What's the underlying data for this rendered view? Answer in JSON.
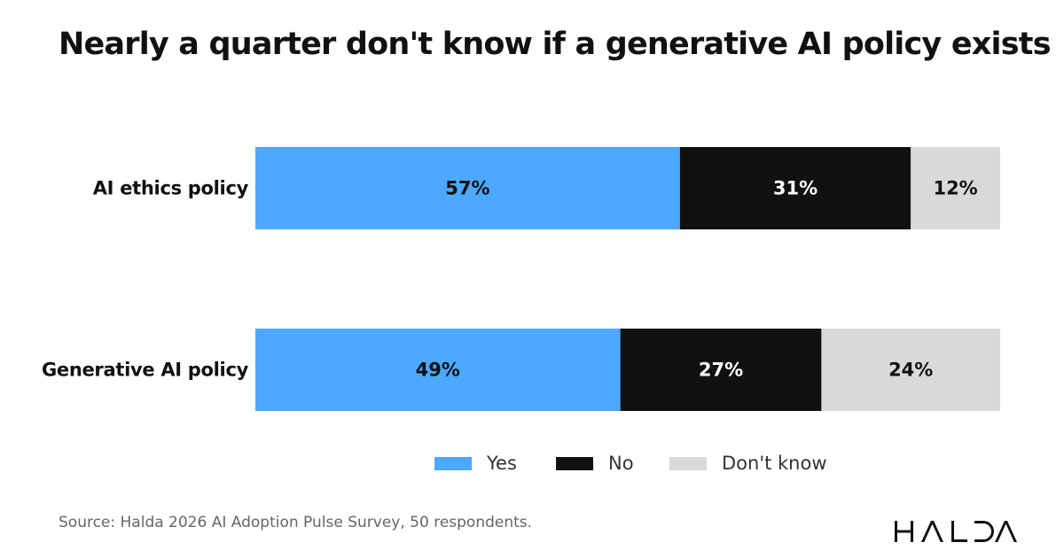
{
  "title": "Nearly a quarter don't know if a generative AI policy exists",
  "source": "Source: Halda 2026 AI Adoption Pulse Survey, 50 respondents.",
  "logo": {
    "text": "HALDA"
  },
  "colors": {
    "yes": "#4DA8FF",
    "no": "#111111",
    "dont_know": "#D9D9D9"
  },
  "chart_data": {
    "type": "bar",
    "orientation": "horizontal",
    "stacked": true,
    "percent_stacked": true,
    "title": "Nearly a quarter don't know if a generative AI policy exists",
    "categories": [
      "AI ethics policy",
      "Generative AI policy"
    ],
    "series": [
      {
        "name": "Yes",
        "values": [
          57,
          49
        ],
        "labels": [
          "57%",
          "49%"
        ],
        "color": "#4DA8FF",
        "label_color": "#111111"
      },
      {
        "name": "No",
        "values": [
          31,
          27
        ],
        "labels": [
          "31%",
          "27%"
        ],
        "color": "#111111",
        "label_color": "#ffffff"
      },
      {
        "name": "Don't know",
        "values": [
          12,
          24
        ],
        "labels": [
          "12%",
          "24%"
        ],
        "color": "#D9D9D9",
        "label_color": "#111111"
      }
    ],
    "xlim": [
      0,
      100
    ],
    "grid": false,
    "legend_position": "bottom"
  }
}
